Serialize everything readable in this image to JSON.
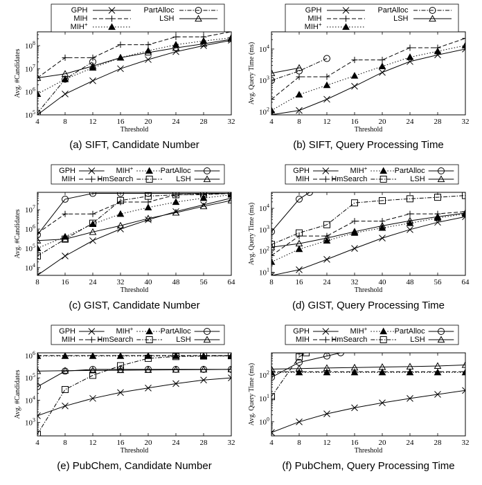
{
  "chart_data": [
    {
      "type": "line",
      "caption": "(a)  SIFT, Candidate Number",
      "xlabel": "Threshold",
      "ylabel": "Avg. #Candidates",
      "ylog": true,
      "xlim": [
        4,
        32
      ],
      "ylim_exp": [
        5,
        8.6
      ],
      "x_ticks": [
        "4",
        "8",
        "12",
        "16",
        "20",
        "24",
        "28",
        "32"
      ],
      "y_tick_exps": [
        5,
        6,
        7,
        8
      ],
      "legend_columns": 2,
      "series": [
        {
          "name": "GPH",
          "style": "solid",
          "marker": "x",
          "x": [
            4,
            8,
            12,
            16,
            20,
            24,
            28,
            32
          ],
          "y": [
            100000,
            800000,
            3000000,
            10000000,
            25000000,
            55000000,
            100000000,
            170000000
          ]
        },
        {
          "name": "MIH",
          "style": "dashed",
          "marker": "plus",
          "x": [
            4,
            8,
            12,
            16,
            20,
            24,
            28,
            32
          ],
          "y": [
            4000000,
            30000000,
            30000000,
            110000000,
            110000000,
            240000000,
            240000000,
            400000000
          ]
        },
        {
          "name": "MIH+",
          "style": "dotted",
          "marker": "triangle-filled",
          "x": [
            4,
            8,
            12,
            16,
            20,
            24,
            28,
            32
          ],
          "y": [
            800000,
            3500000,
            11000000,
            30000000,
            60000000,
            110000000,
            160000000,
            220000000
          ]
        },
        {
          "name": "PartAlloc",
          "style": "dashdot",
          "marker": "circle",
          "x": [
            4,
            8,
            12
          ],
          "y": [
            120000,
            3500000,
            20000000
          ]
        },
        {
          "name": "LSH",
          "style": "solid",
          "marker": "triangle",
          "x": [
            4,
            8,
            12,
            16,
            20,
            24,
            28,
            32
          ],
          "y": [
            4000000,
            6000000,
            13000000,
            30000000,
            50000000,
            80000000,
            120000000,
            190000000
          ]
        }
      ]
    },
    {
      "type": "line",
      "caption": "(b)  SIFT, Query Processing Time",
      "xlabel": "Threshold",
      "ylabel": "Avg. Query Time (ms)",
      "ylog": true,
      "xlim": [
        4,
        32
      ],
      "ylim_exp": [
        1.9,
        4.55
      ],
      "x_ticks": [
        "4",
        "8",
        "12",
        "16",
        "20",
        "24",
        "28",
        "32"
      ],
      "y_tick_exps": [
        2,
        3,
        4
      ],
      "legend_columns": 2,
      "series": [
        {
          "name": "GPH",
          "style": "solid",
          "marker": "x",
          "x": [
            4,
            8,
            12,
            16,
            20,
            24,
            28,
            32
          ],
          "y": [
            80,
            110,
            250,
            650,
            1800,
            4000,
            6500,
            10000
          ]
        },
        {
          "name": "MIH",
          "style": "dashed",
          "marker": "plus",
          "x": [
            4,
            8,
            12,
            16,
            20,
            24,
            28,
            32
          ],
          "y": [
            250,
            1300,
            1300,
            4500,
            4500,
            11000,
            11000,
            22000
          ]
        },
        {
          "name": "MIH+",
          "style": "dotted",
          "marker": "triangle-filled",
          "x": [
            4,
            8,
            12,
            16,
            20,
            24,
            28,
            32
          ],
          "y": [
            110,
            350,
            700,
            1400,
            2800,
            5500,
            8500,
            13000
          ]
        },
        {
          "name": "PartAlloc",
          "style": "dashdot",
          "marker": "circle",
          "x": [
            4,
            8,
            12
          ],
          "y": [
            1000,
            2000,
            5000
          ]
        },
        {
          "name": "LSH",
          "style": "solid",
          "marker": "triangle",
          "x": [
            4,
            8
          ],
          "y": [
            1700,
            2500
          ]
        }
      ]
    },
    {
      "type": "line",
      "caption": "(c)  GIST, Candidate Number",
      "xlabel": "Threshold",
      "ylabel": "Avg. #Candidates",
      "ylog": true,
      "xlim": [
        8,
        64
      ],
      "ylim_exp": [
        3.6,
        7.9
      ],
      "x_ticks": [
        "8",
        "16",
        "24",
        "32",
        "40",
        "48",
        "56",
        "64"
      ],
      "y_tick_exps": [
        4,
        5,
        6,
        7
      ],
      "legend_columns": 3,
      "series": [
        {
          "name": "GPH",
          "style": "solid",
          "marker": "x",
          "x": [
            8,
            16,
            24,
            32,
            40,
            48,
            56,
            64
          ],
          "y": [
            4000,
            40000,
            250000,
            1000000,
            3000000,
            8000000,
            18000000,
            40000000
          ]
        },
        {
          "name": "MIH",
          "style": "dashed",
          "marker": "plus",
          "x": [
            8,
            16,
            24,
            32,
            40,
            48,
            56,
            64
          ],
          "y": [
            600000,
            6000000,
            6000000,
            25000000,
            25000000,
            60000000,
            60000000,
            70000000
          ]
        },
        {
          "name": "MIH+",
          "style": "dotted",
          "marker": "triangle-filled",
          "x": [
            8,
            16,
            24,
            32,
            40,
            48,
            56,
            64
          ],
          "y": [
            100000,
            400000,
            1800000,
            6000000,
            13000000,
            25000000,
            40000000,
            60000000
          ]
        },
        {
          "name": "HmSearch",
          "style": "dashdot",
          "marker": "square",
          "x": [
            8,
            16,
            24,
            32,
            40,
            48,
            56,
            64
          ],
          "y": [
            40000,
            300000,
            2000000,
            30000000,
            50000000,
            60000000,
            65000000,
            70000000
          ]
        },
        {
          "name": "PartAlloc",
          "style": "solid",
          "marker": "circle",
          "x": [
            8,
            16,
            24,
            32,
            40,
            48,
            56,
            64
          ],
          "y": [
            500000,
            35000000,
            70000000,
            70000000,
            70000000,
            70000000,
            70000000,
            70000000
          ]
        },
        {
          "name": "LSH",
          "style": "solid",
          "marker": "triangle",
          "x": [
            8,
            16,
            24,
            32,
            40,
            48,
            56,
            64
          ],
          "y": [
            250000,
            300000,
            700000,
            1500000,
            3500000,
            7000000,
            15000000,
            30000000
          ]
        }
      ]
    },
    {
      "type": "line",
      "caption": "(d)  GIST, Query Processing Time",
      "xlabel": "Threshold",
      "ylabel": "Avg. Query Time (ms)",
      "ylog": true,
      "xlim": [
        8,
        64
      ],
      "ylim_exp": [
        0.85,
        4.75
      ],
      "x_ticks": [
        "8",
        "16",
        "24",
        "32",
        "40",
        "48",
        "56",
        "64"
      ],
      "y_tick_exps": [
        1,
        2,
        3,
        4
      ],
      "legend_columns": 3,
      "series": [
        {
          "name": "GPH",
          "style": "solid",
          "marker": "x",
          "x": [
            8,
            16,
            24,
            32,
            40,
            48,
            56,
            64
          ],
          "y": [
            7,
            13,
            40,
            130,
            400,
            1000,
            2200,
            4000
          ]
        },
        {
          "name": "MIH",
          "style": "dashed",
          "marker": "plus",
          "x": [
            8,
            16,
            24,
            32,
            40,
            48,
            56,
            64
          ],
          "y": [
            60,
            500,
            500,
            2500,
            2500,
            5500,
            5500,
            7000
          ]
        },
        {
          "name": "MIH+",
          "style": "dotted",
          "marker": "triangle-filled",
          "x": [
            8,
            16,
            24,
            32,
            40,
            48,
            56,
            64
          ],
          "y": [
            30,
            120,
            300,
            700,
            1200,
            2000,
            3500,
            5500
          ]
        },
        {
          "name": "HmSearch",
          "style": "dashdot",
          "marker": "square",
          "x": [
            8,
            16,
            24,
            32,
            40,
            48,
            56,
            64
          ],
          "y": [
            200,
            700,
            1700,
            18000,
            23000,
            28000,
            33000,
            40000
          ]
        },
        {
          "name": "PartAlloc",
          "style": "solid",
          "marker": "circle",
          "x": [
            8,
            16,
            19
          ],
          "y": [
            800,
            27000,
            56000
          ]
        },
        {
          "name": "LSH",
          "style": "solid",
          "marker": "triangle",
          "x": [
            8,
            16,
            24,
            32,
            40,
            48,
            56,
            64
          ],
          "y": [
            150,
            220,
            400,
            800,
            1500,
            2600,
            4000,
            6000
          ]
        }
      ]
    },
    {
      "type": "line",
      "caption": "(e)  PubChem, Candidate Number",
      "xlabel": "Threshold",
      "ylabel": "Avg. #Candidates",
      "ylog": true,
      "xlim": [
        4,
        32
      ],
      "ylim_exp": [
        2.4,
        6.12
      ],
      "x_ticks": [
        "4",
        "8",
        "12",
        "16",
        "20",
        "24",
        "28",
        "32"
      ],
      "y_tick_exps": [
        3,
        4,
        5,
        6
      ],
      "legend_columns": 3,
      "series": [
        {
          "name": "GPH",
          "style": "solid",
          "marker": "x",
          "x": [
            4,
            8,
            12,
            16,
            20,
            24,
            28,
            32
          ],
          "y": [
            2000,
            5500,
            12000,
            22000,
            35000,
            55000,
            80000,
            100000
          ]
        },
        {
          "name": "MIH",
          "style": "dashed",
          "marker": "plus",
          "x": [
            4,
            8,
            12,
            16,
            20,
            24,
            28,
            32
          ],
          "y": [
            1000000,
            1000000,
            1000000,
            1000000,
            1000000,
            1000000,
            1000000,
            1000000
          ]
        },
        {
          "name": "MIH+",
          "style": "dotted",
          "marker": "triangle-filled",
          "x": [
            4,
            8,
            12,
            16,
            20,
            24,
            28,
            32
          ],
          "y": [
            950000,
            950000,
            950000,
            950000,
            950000,
            950000,
            950000,
            950000
          ]
        },
        {
          "name": "HmSearch",
          "style": "dashdot",
          "marker": "square",
          "x": [
            4,
            8,
            12,
            16,
            20,
            24,
            28,
            32
          ],
          "y": [
            300,
            30000,
            130000,
            350000,
            750000,
            900000,
            950000,
            980000
          ]
        },
        {
          "name": "PartAlloc",
          "style": "solid",
          "marker": "circle",
          "x": [
            4,
            8,
            12,
            16,
            20,
            24,
            28,
            32
          ],
          "y": [
            40000,
            200000,
            240000,
            240000,
            240000,
            240000,
            240000,
            240000
          ]
        },
        {
          "name": "LSH",
          "style": "solid",
          "marker": "triangle",
          "x": [
            4,
            8,
            12,
            16,
            20,
            24,
            28,
            32
          ],
          "y": [
            200000,
            210000,
            215000,
            220000,
            225000,
            230000,
            235000,
            240000
          ]
        }
      ]
    },
    {
      "type": "line",
      "caption": "(f)  PubChem, Query Processing Time",
      "xlabel": "Threshold",
      "ylabel": "Avg. Query Time (ms)",
      "ylog": true,
      "xlim": [
        4,
        32
      ],
      "ylim_exp": [
        -0.6,
        2.95
      ],
      "x_ticks": [
        "4",
        "8",
        "12",
        "16",
        "20",
        "24",
        "28",
        "32"
      ],
      "y_tick_exps": [
        0,
        1,
        2
      ],
      "legend_columns": 3,
      "series": [
        {
          "name": "GPH",
          "style": "solid",
          "marker": "x",
          "x": [
            4,
            8,
            12,
            16,
            20,
            24,
            28,
            32
          ],
          "y": [
            0.35,
            1,
            2.2,
            4,
            6.5,
            10,
            15,
            22
          ]
        },
        {
          "name": "MIH",
          "style": "dashed",
          "marker": "plus",
          "x": [
            4,
            8,
            12,
            16,
            20,
            24,
            28,
            32
          ],
          "y": [
            140,
            140,
            140,
            140,
            140,
            140,
            140,
            140
          ]
        },
        {
          "name": "MIH+",
          "style": "dotted",
          "marker": "triangle-filled",
          "x": [
            4,
            8,
            12,
            16,
            20,
            24,
            28,
            32
          ],
          "y": [
            130,
            130,
            130,
            130,
            130,
            130,
            130,
            130
          ]
        },
        {
          "name": "HmSearch",
          "style": "dashdot",
          "marker": "square",
          "x": [
            4,
            8,
            9
          ],
          "y": [
            12,
            600,
            900
          ]
        },
        {
          "name": "PartAlloc",
          "style": "solid",
          "marker": "circle",
          "x": [
            4,
            8,
            12,
            14
          ],
          "y": [
            80,
            350,
            650,
            900
          ]
        },
        {
          "name": "LSH",
          "style": "solid",
          "marker": "triangle",
          "x": [
            4,
            8,
            12,
            16,
            20,
            24,
            28,
            32
          ],
          "y": [
            180,
            190,
            200,
            210,
            220,
            230,
            245,
            270
          ]
        }
      ]
    }
  ]
}
